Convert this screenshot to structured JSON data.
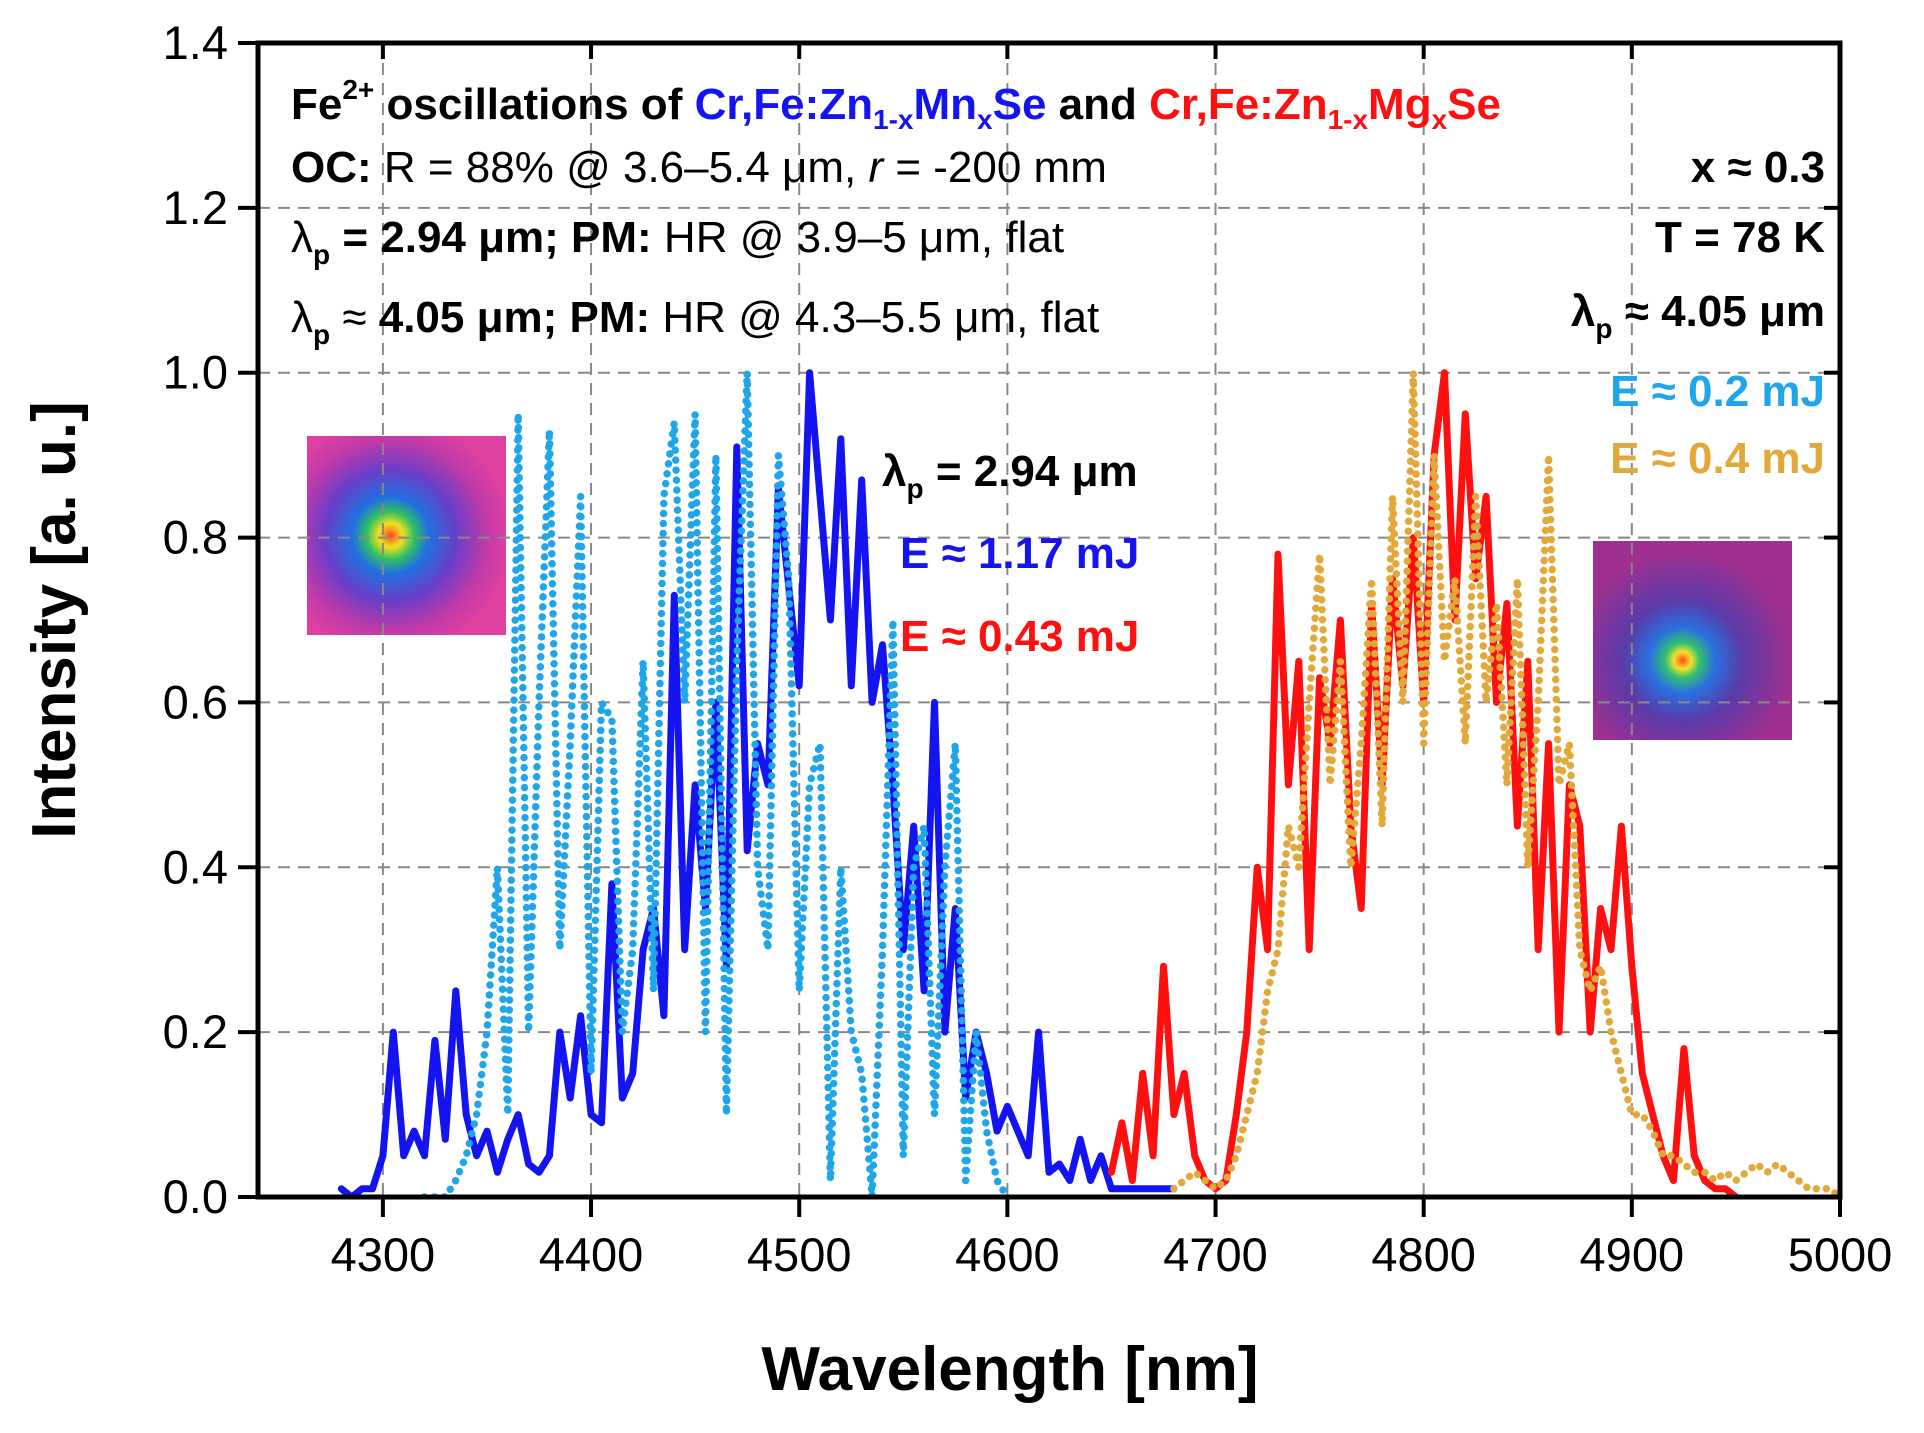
{
  "chart_data": {
    "type": "line",
    "xlabel": "Wavelength [nm]",
    "ylabel": "Intensity [a. u.]",
    "xlim": [
      4240,
      5000
    ],
    "xticks": [
      4300,
      4400,
      4500,
      4600,
      4700,
      4800,
      4900,
      5000
    ],
    "ylim": [
      0,
      1.4
    ],
    "yticks": [
      {
        "value": 0,
        "label": "0.0"
      },
      {
        "value": 0.2,
        "label": "0.2"
      },
      {
        "value": 0.4,
        "label": "0.4"
      },
      {
        "value": 0.6,
        "label": "0.6"
      },
      {
        "value": 0.8,
        "label": "0.8"
      },
      {
        "value": 1.0,
        "label": "1.0"
      },
      {
        "value": 1.2,
        "label": "1.2"
      },
      {
        "value": 1.4,
        "label": "1.4"
      }
    ],
    "grid": true,
    "annotations": {
      "header": [
        "Fe",
        "2+",
        " oscillations of ",
        "Cr,Fe:Zn",
        "1-x",
        "Mn",
        "x",
        "Se",
        " and ",
        "Cr,Fe:Zn",
        "1-x",
        "Mg",
        "x",
        "Se"
      ],
      "oc": [
        "OC:",
        " R = 88% @ 3.6–5.4 μm, ",
        "r",
        " = -200 mm"
      ],
      "pump1": [
        "λ",
        "p",
        " =  2.94 μm; PM:",
        " HR @ 3.9–5 μm, flat"
      ],
      "pump2": [
        "λ",
        "p",
        " ≈ ",
        "4.05 μm; PM:",
        " HR @ 4.3–5.5 μm, flat"
      ],
      "composition": "x ≈ 0.3",
      "temperature": "T = 78 K",
      "pump_right": [
        "λ",
        "p",
        " ≈ 4.05 μm"
      ],
      "pump_middle": [
        "λ",
        "p",
        " =  2.94 μm"
      ]
    },
    "series": [
      {
        "name": "E ≈ 1.17 mJ",
        "color": "#1414f0",
        "style": "solid",
        "x": [
          4280,
          4285,
          4290,
          4295,
          4300,
          4305,
          4310,
          4315,
          4320,
          4325,
          4330,
          4335,
          4340,
          4345,
          4350,
          4355,
          4360,
          4365,
          4370,
          4375,
          4380,
          4385,
          4390,
          4395,
          4400,
          4405,
          4410,
          4415,
          4420,
          4425,
          4430,
          4435,
          4440,
          4445,
          4450,
          4455,
          4460,
          4465,
          4470,
          4475,
          4480,
          4485,
          4490,
          4495,
          4500,
          4505,
          4510,
          4515,
          4520,
          4525,
          4530,
          4535,
          4540,
          4545,
          4550,
          4555,
          4560,
          4565,
          4570,
          4575,
          4580,
          4585,
          4590,
          4595,
          4600,
          4605,
          4610,
          4615,
          4620,
          4625,
          4630,
          4635,
          4640,
          4645,
          4650,
          4655,
          4660,
          4665,
          4670,
          4675,
          4680
        ],
        "values": [
          0.01,
          0,
          0.01,
          0.01,
          0.05,
          0.2,
          0.05,
          0.08,
          0.05,
          0.19,
          0.07,
          0.25,
          0.1,
          0.05,
          0.08,
          0.03,
          0.07,
          0.1,
          0.04,
          0.03,
          0.05,
          0.2,
          0.12,
          0.22,
          0.1,
          0.09,
          0.38,
          0.12,
          0.15,
          0.3,
          0.35,
          0.22,
          0.73,
          0.3,
          0.5,
          0.35,
          0.6,
          0.28,
          0.91,
          0.42,
          0.55,
          0.5,
          0.86,
          0.74,
          0.62,
          1.0,
          0.85,
          0.7,
          0.92,
          0.62,
          0.87,
          0.6,
          0.67,
          0.5,
          0.3,
          0.45,
          0.25,
          0.6,
          0.2,
          0.35,
          0.12,
          0.2,
          0.15,
          0.08,
          0.11,
          0.08,
          0.05,
          0.2,
          0.03,
          0.04,
          0.02,
          0.07,
          0.02,
          0.05,
          0.01,
          0.01,
          0.01,
          0.01,
          0.01,
          0.01,
          0.01
        ]
      },
      {
        "name": "E ≈ 0.2 mJ",
        "color": "#1ea5ea",
        "style": "dotted",
        "x": [
          4320,
          4325,
          4330,
          4335,
          4340,
          4345,
          4350,
          4355,
          4360,
          4365,
          4370,
          4375,
          4380,
          4385,
          4390,
          4395,
          4400,
          4405,
          4410,
          4415,
          4420,
          4425,
          4430,
          4435,
          4440,
          4445,
          4450,
          4455,
          4460,
          4465,
          4470,
          4475,
          4480,
          4485,
          4490,
          4495,
          4500,
          4505,
          4510,
          4515,
          4520,
          4525,
          4530,
          4535,
          4540,
          4545,
          4550,
          4555,
          4560,
          4565,
          4570,
          4575,
          4580,
          4585,
          4590,
          4595,
          4600
        ],
        "values": [
          0,
          0,
          0,
          0.02,
          0.05,
          0.1,
          0.2,
          0.4,
          0.1,
          0.95,
          0.2,
          0.6,
          0.93,
          0.3,
          0.55,
          0.85,
          0.15,
          0.6,
          0.58,
          0.2,
          0.3,
          0.65,
          0.25,
          0.85,
          0.94,
          0.6,
          0.95,
          0.2,
          0.9,
          0.1,
          0.65,
          1.0,
          0.4,
          0.3,
          0.9,
          0.75,
          0.25,
          0.5,
          0.55,
          0.02,
          0.4,
          0.2,
          0.15,
          0,
          0.3,
          0.7,
          0.05,
          0.4,
          0.45,
          0.1,
          0.4,
          0.55,
          0.02,
          0.2,
          0.08,
          0.02,
          0
        ]
      },
      {
        "name": "E ≈ 0.43 mJ",
        "color": "#ff1010",
        "style": "solid",
        "x": [
          4650,
          4655,
          4660,
          4665,
          4670,
          4675,
          4680,
          4685,
          4690,
          4695,
          4700,
          4705,
          4710,
          4715,
          4720,
          4725,
          4730,
          4735,
          4740,
          4745,
          4750,
          4755,
          4760,
          4765,
          4770,
          4775,
          4780,
          4785,
          4790,
          4795,
          4800,
          4805,
          4810,
          4815,
          4820,
          4825,
          4830,
          4835,
          4840,
          4845,
          4850,
          4855,
          4860,
          4865,
          4870,
          4875,
          4880,
          4885,
          4890,
          4895,
          4900,
          4905,
          4910,
          4915,
          4920,
          4925,
          4930,
          4935,
          4940,
          4945,
          4950
        ],
        "values": [
          0.03,
          0.09,
          0.02,
          0.15,
          0.05,
          0.28,
          0.1,
          0.15,
          0.05,
          0.02,
          0.01,
          0.02,
          0.1,
          0.2,
          0.4,
          0.3,
          0.78,
          0.5,
          0.65,
          0.3,
          0.63,
          0.55,
          0.7,
          0.45,
          0.35,
          0.72,
          0.5,
          0.75,
          0.62,
          0.8,
          0.6,
          0.9,
          1.0,
          0.7,
          0.95,
          0.75,
          0.85,
          0.6,
          0.72,
          0.45,
          0.65,
          0.3,
          0.55,
          0.2,
          0.5,
          0.45,
          0.2,
          0.35,
          0.3,
          0.45,
          0.28,
          0.15,
          0.1,
          0.05,
          0.02,
          0.18,
          0.05,
          0.02,
          0.01,
          0.01,
          0
        ]
      },
      {
        "name": "E ≈ 0.4 mJ",
        "color": "#e2a93a",
        "style": "dotted",
        "x": [
          4680,
          4685,
          4690,
          4695,
          4700,
          4705,
          4710,
          4715,
          4720,
          4725,
          4730,
          4735,
          4740,
          4745,
          4750,
          4755,
          4760,
          4765,
          4770,
          4775,
          4780,
          4785,
          4790,
          4795,
          4800,
          4805,
          4810,
          4815,
          4820,
          4825,
          4830,
          4835,
          4840,
          4845,
          4850,
          4855,
          4860,
          4865,
          4870,
          4875,
          4880,
          4885,
          4890,
          4895,
          4900,
          4905,
          4910,
          4915,
          4920,
          4925,
          4930,
          4935,
          4940,
          4945,
          4950,
          4955,
          4960,
          4965,
          4970,
          4975,
          4980,
          4985,
          4990,
          4995,
          5000
        ],
        "values": [
          0.01,
          0.02,
          0.03,
          0.02,
          0.01,
          0.02,
          0.05,
          0.1,
          0.15,
          0.25,
          0.3,
          0.45,
          0.4,
          0.6,
          0.78,
          0.5,
          0.65,
          0.4,
          0.55,
          0.75,
          0.45,
          0.85,
          0.6,
          1.0,
          0.55,
          0.9,
          0.65,
          0.75,
          0.55,
          0.85,
          0.6,
          0.72,
          0.5,
          0.75,
          0.4,
          0.6,
          0.9,
          0.5,
          0.55,
          0.3,
          0.25,
          0.28,
          0.2,
          0.15,
          0.1,
          0.1,
          0.08,
          0.05,
          0.05,
          0.04,
          0.03,
          0.03,
          0.02,
          0.03,
          0.02,
          0.03,
          0.04,
          0.03,
          0.04,
          0.03,
          0.02,
          0.01,
          0.01,
          0.01,
          0
        ]
      }
    ]
  }
}
